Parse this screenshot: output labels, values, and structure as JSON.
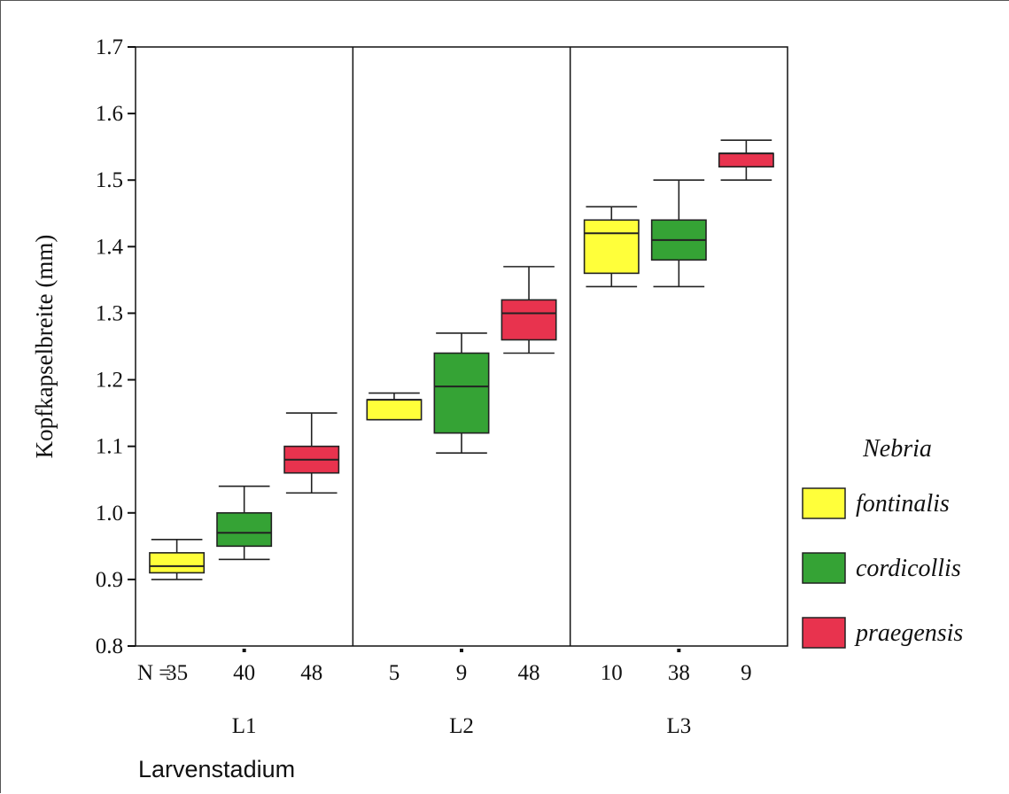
{
  "chart_data": {
    "type": "boxplot",
    "ylabel": "Kopfkapselbreite (mm)",
    "xlabel": "Larvenstadium",
    "ylim": [
      0.8,
      1.7
    ],
    "yticks": [
      "1.7",
      "1.6",
      "1.5",
      "1.4",
      "1.3",
      "1.2",
      "1.1",
      "1.0",
      "0.9",
      "0.8"
    ],
    "n_prefix": "N =",
    "grid": false,
    "legend_position": "right",
    "legend_title": "Nebria",
    "series": [
      {
        "name": "fontinalis",
        "color": "#ffff3a"
      },
      {
        "name": "cordicollis",
        "color": "#35a335"
      },
      {
        "name": "praegensis",
        "color": "#e8334e"
      }
    ],
    "groups": [
      {
        "label": "L1",
        "boxes": [
          {
            "series": "fontinalis",
            "n": "35",
            "min": 0.9,
            "q1": 0.91,
            "median": 0.92,
            "q3": 0.94,
            "max": 0.96
          },
          {
            "series": "cordicollis",
            "n": "40",
            "min": 0.93,
            "q1": 0.95,
            "median": 0.97,
            "q3": 1.0,
            "max": 1.04
          },
          {
            "series": "praegensis",
            "n": "48",
            "min": 1.03,
            "q1": 1.06,
            "median": 1.08,
            "q3": 1.1,
            "max": 1.15
          }
        ]
      },
      {
        "label": "L2",
        "boxes": [
          {
            "series": "fontinalis",
            "n": "5",
            "min": 1.14,
            "q1": 1.14,
            "median": 1.17,
            "q3": 1.17,
            "max": 1.18
          },
          {
            "series": "cordicollis",
            "n": "9",
            "min": 1.09,
            "q1": 1.12,
            "median": 1.19,
            "q3": 1.24,
            "max": 1.27
          },
          {
            "series": "praegensis",
            "n": "48",
            "min": 1.24,
            "q1": 1.26,
            "median": 1.3,
            "q3": 1.32,
            "max": 1.37
          }
        ]
      },
      {
        "label": "L3",
        "boxes": [
          {
            "series": "fontinalis",
            "n": "10",
            "min": 1.34,
            "q1": 1.36,
            "median": 1.42,
            "q3": 1.44,
            "max": 1.46
          },
          {
            "series": "cordicollis",
            "n": "38",
            "min": 1.34,
            "q1": 1.38,
            "median": 1.41,
            "q3": 1.44,
            "max": 1.5
          },
          {
            "series": "praegensis",
            "n": "9",
            "min": 1.5,
            "q1": 1.52,
            "median": 1.54,
            "q3": 1.54,
            "max": 1.56
          }
        ]
      }
    ]
  }
}
